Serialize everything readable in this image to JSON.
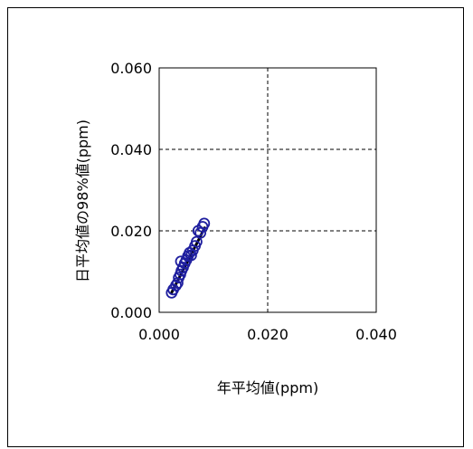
{
  "chart_data": {
    "type": "scatter",
    "title": "",
    "xlabel": "年平均値(ppm)",
    "ylabel": "日平均値の98%値(ppm)",
    "xlim": [
      0,
      0.04
    ],
    "ylim": [
      0,
      0.06
    ],
    "x_ticks": [
      "0.000",
      "0.020",
      "0.040"
    ],
    "y_ticks": [
      "0.000",
      "0.020",
      "0.040",
      "0.060"
    ],
    "grid": "dashed",
    "marker_color": "#1f1f9f",
    "line_color": "#000000",
    "points": [
      {
        "x": 0.0023,
        "y": 0.0048
      },
      {
        "x": 0.0026,
        "y": 0.0056
      },
      {
        "x": 0.0031,
        "y": 0.0066
      },
      {
        "x": 0.0034,
        "y": 0.0072
      },
      {
        "x": 0.0036,
        "y": 0.0085
      },
      {
        "x": 0.0039,
        "y": 0.0093
      },
      {
        "x": 0.0041,
        "y": 0.0102
      },
      {
        "x": 0.0044,
        "y": 0.011
      },
      {
        "x": 0.004,
        "y": 0.0125
      },
      {
        "x": 0.0047,
        "y": 0.012
      },
      {
        "x": 0.005,
        "y": 0.0128
      },
      {
        "x": 0.0053,
        "y": 0.0138
      },
      {
        "x": 0.0056,
        "y": 0.0146
      },
      {
        "x": 0.0059,
        "y": 0.014
      },
      {
        "x": 0.0062,
        "y": 0.0152
      },
      {
        "x": 0.0066,
        "y": 0.0163
      },
      {
        "x": 0.0069,
        "y": 0.0173
      },
      {
        "x": 0.0072,
        "y": 0.02
      },
      {
        "x": 0.0076,
        "y": 0.0195
      },
      {
        "x": 0.008,
        "y": 0.021
      },
      {
        "x": 0.0083,
        "y": 0.0218
      }
    ],
    "regression": {
      "x": [
        0.0022,
        0.0085
      ],
      "y": [
        0.0046,
        0.021
      ]
    }
  }
}
